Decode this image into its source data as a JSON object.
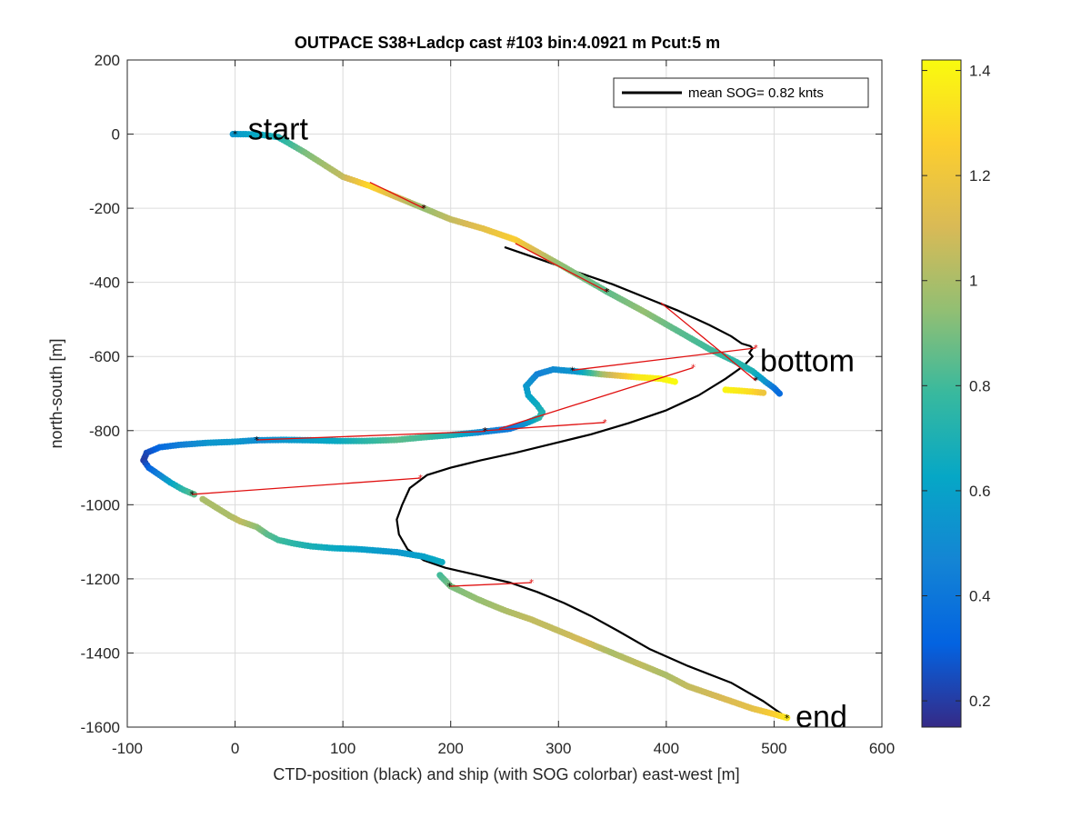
{
  "chart_data": {
    "type": "scatter",
    "title": "OUTPACE S38+Ladcp cast #103 bin:4.0921 m  Pcut:5 m",
    "xlabel": "CTD-position (black) and ship (with SOG colorbar) east-west [m]",
    "ylabel": "north-south [m]",
    "xlim": [
      -100,
      600
    ],
    "ylim": [
      -1600,
      200
    ],
    "xticks": [
      -100,
      0,
      100,
      200,
      300,
      400,
      500,
      600
    ],
    "yticks": [
      200,
      0,
      -200,
      -400,
      -600,
      -800,
      -1000,
      -1200,
      -1400,
      -1600
    ],
    "grid": true,
    "legend": {
      "position": "top-right",
      "entries": [
        "mean SOG=  0.82 knts"
      ]
    },
    "colorbar": {
      "clim": [
        0.15,
        1.42
      ],
      "ticks": [
        0.2,
        0.4,
        0.6,
        0.8,
        1,
        1.2,
        1.4
      ],
      "tick_labels": [
        "0.2",
        "0.4",
        "0.6",
        "0.8",
        "1",
        "1.2",
        "1.4"
      ],
      "colormap": "parula"
    },
    "annotations": [
      {
        "text": "start",
        "x": 12,
        "y": -15
      },
      {
        "text": "bottom",
        "x": 487,
        "y": -640
      },
      {
        "text": "end",
        "x": 520,
        "y": -1600
      }
    ],
    "ctd_track": {
      "color": "#000000",
      "x": [
        250,
        280,
        310,
        350,
        380,
        410,
        440,
        460,
        470,
        478,
        480,
        477,
        480,
        472,
        455,
        430,
        400,
        365,
        330,
        295,
        260,
        228,
        200,
        178,
        162,
        155,
        150,
        152,
        160,
        175,
        195,
        225,
        255,
        280,
        305,
        330,
        355,
        385,
        420,
        460,
        490,
        512
      ],
      "y": [
        -305,
        -335,
        -365,
        -405,
        -440,
        -475,
        -515,
        -545,
        -565,
        -572,
        -578,
        -590,
        -600,
        -625,
        -660,
        -705,
        -745,
        -780,
        -810,
        -835,
        -860,
        -880,
        -900,
        -920,
        -955,
        -1000,
        -1040,
        -1080,
        -1120,
        -1150,
        -1170,
        -1190,
        -1210,
        -1235,
        -1265,
        -1300,
        -1340,
        -1390,
        -1435,
        -1480,
        -1530,
        -1575
      ]
    },
    "ship_segments": [
      {
        "x": [
          -2,
          10,
          25,
          40
        ],
        "y": [
          0,
          0,
          -2,
          -8
        ],
        "sog": [
          0.55,
          0.6,
          0.65,
          0.7
        ]
      },
      {
        "x": [
          40,
          65,
          100,
          125,
          150,
          175,
          200,
          230,
          260,
          300,
          345,
          380,
          410,
          440,
          465,
          480,
          492,
          500,
          505
        ],
        "y": [
          -8,
          -50,
          -115,
          -140,
          -170,
          -200,
          -230,
          -255,
          -285,
          -350,
          -425,
          -480,
          -530,
          -580,
          -615,
          -640,
          -668,
          -685,
          -700
        ],
        "sog": [
          0.7,
          0.9,
          1.05,
          1.3,
          1.1,
          0.95,
          1.05,
          1.15,
          1.25,
          0.95,
          0.85,
          0.95,
          0.85,
          0.8,
          0.75,
          0.7,
          0.55,
          0.4,
          0.35
        ]
      },
      {
        "x": [
          455,
          470,
          480,
          490
        ],
        "y": [
          -690,
          -693,
          -695,
          -698
        ],
        "sog": [
          1.4,
          1.35,
          1.3,
          1.2
        ]
      },
      {
        "x": [
          408,
          395,
          370,
          340,
          315,
          295,
          280,
          270,
          272,
          280,
          285,
          282,
          270,
          255,
          240,
          225
        ],
        "y": [
          -668,
          -660,
          -655,
          -648,
          -640,
          -635,
          -648,
          -680,
          -705,
          -730,
          -750,
          -765,
          -780,
          -795,
          -800,
          -805
        ],
        "sog": [
          1.42,
          1.4,
          1.35,
          1.0,
          0.55,
          0.5,
          0.45,
          0.55,
          0.6,
          0.65,
          0.7,
          0.75,
          0.55,
          0.4,
          0.45,
          0.5
        ]
      },
      {
        "x": [
          225,
          200,
          175,
          150,
          120,
          95,
          70,
          45,
          20
        ],
        "y": [
          -805,
          -812,
          -818,
          -825,
          -828,
          -828,
          -826,
          -825,
          -826
        ],
        "sog": [
          0.5,
          0.7,
          0.8,
          0.85,
          0.75,
          0.65,
          0.6,
          0.55,
          0.5
        ]
      },
      {
        "x": [
          20,
          0,
          -25,
          -50,
          -70,
          -82,
          -85,
          -80,
          -70,
          -60,
          -48,
          -38
        ],
        "y": [
          -826,
          -830,
          -833,
          -838,
          -845,
          -860,
          -880,
          -900,
          -920,
          -940,
          -960,
          -972
        ],
        "sog": [
          0.5,
          0.55,
          0.55,
          0.45,
          0.35,
          0.25,
          0.2,
          0.3,
          0.45,
          0.6,
          0.75,
          0.85
        ]
      },
      {
        "x": [
          -30,
          -5,
          5,
          20,
          30,
          40,
          55,
          70,
          90,
          115,
          150,
          175,
          192
        ],
        "y": [
          -985,
          -1030,
          -1045,
          -1060,
          -1080,
          -1095,
          -1105,
          -1112,
          -1117,
          -1120,
          -1128,
          -1140,
          -1155
        ],
        "sog": [
          1.0,
          1.0,
          1.05,
          0.95,
          0.85,
          0.8,
          0.75,
          0.7,
          0.65,
          0.6,
          0.55,
          0.6,
          0.65
        ]
      },
      {
        "x": [
          190,
          200,
          225,
          250,
          275,
          300,
          325,
          350,
          375,
          400,
          420,
          450,
          480,
          500,
          512
        ],
        "y": [
          -1190,
          -1220,
          -1255,
          -1285,
          -1310,
          -1340,
          -1370,
          -1400,
          -1430,
          -1460,
          -1490,
          -1520,
          -1550,
          -1565,
          -1575
        ],
        "sog": [
          0.8,
          0.9,
          0.95,
          1.0,
          1.05,
          1.05,
          1.1,
          1.0,
          1.05,
          1.0,
          1.05,
          1.1,
          1.15,
          1.25,
          1.35
        ]
      }
    ],
    "red_links": [
      {
        "x": [
          125,
          175
        ],
        "y": [
          -130,
          -200
        ]
      },
      {
        "x": [
          260,
          345
        ],
        "y": [
          -295,
          -425
        ]
      },
      {
        "x": [
          395,
          483
        ],
        "y": [
          -455,
          -665
        ]
      },
      {
        "x": [
          313,
          483
        ],
        "y": [
          -637,
          -577
        ]
      },
      {
        "x": [
          245,
          425
        ],
        "y": [
          -795,
          -630
        ]
      },
      {
        "x": [
          233,
          343
        ],
        "y": [
          -800,
          -778
        ]
      },
      {
        "x": [
          20,
          232
        ],
        "y": [
          -825,
          -802
        ]
      },
      {
        "x": [
          -40,
          172
        ],
        "y": [
          -972,
          -928
        ]
      },
      {
        "x": [
          199,
          275
        ],
        "y": [
          -1220,
          -1210
        ]
      }
    ],
    "black_star_markers": {
      "x": [
        0,
        175,
        345,
        483,
        313,
        232,
        20,
        -40,
        199,
        512
      ],
      "y": [
        0,
        -200,
        -425,
        -665,
        -637,
        -800,
        -825,
        -972,
        -1220,
        -1575
      ]
    }
  }
}
